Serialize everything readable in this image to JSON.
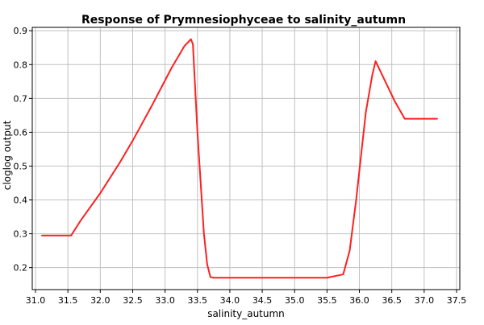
{
  "chart_data": {
    "type": "line",
    "title": "Response of Prymnesiophyceae to salinity_autumn",
    "xlabel": "salinity_autumn",
    "ylabel": "cloglog output",
    "xlim": [
      30.95,
      37.55
    ],
    "ylim": [
      0.135,
      0.91
    ],
    "x_ticks": [
      31.0,
      31.5,
      32.0,
      32.5,
      33.0,
      33.5,
      34.0,
      34.5,
      35.0,
      35.5,
      36.0,
      36.5,
      37.0,
      37.5
    ],
    "x_tick_labels": [
      "31.0",
      "31.5",
      "32.0",
      "32.5",
      "33.0",
      "33.5",
      "34.0",
      "34.5",
      "35.0",
      "35.5",
      "36.0",
      "36.5",
      "37.0",
      "37.5"
    ],
    "y_ticks": [
      0.2,
      0.3,
      0.4,
      0.5,
      0.6,
      0.7,
      0.8,
      0.9
    ],
    "y_tick_labels": [
      "0.2",
      "0.3",
      "0.4",
      "0.5",
      "0.6",
      "0.7",
      "0.8",
      "0.9"
    ],
    "grid": true,
    "line_color": "#ff2020",
    "series": [
      {
        "x": [
          31.1,
          31.55,
          31.7,
          32.0,
          32.3,
          32.5,
          32.8,
          33.1,
          33.3,
          33.4,
          33.43,
          33.5,
          33.6,
          33.65,
          33.7,
          33.75,
          34.0,
          35.0,
          35.5,
          35.75,
          35.85,
          35.95,
          36.1,
          36.2,
          36.25,
          36.4,
          36.55,
          36.7,
          37.0,
          37.2
        ],
        "y": [
          0.295,
          0.295,
          0.34,
          0.42,
          0.51,
          0.575,
          0.68,
          0.79,
          0.855,
          0.875,
          0.86,
          0.6,
          0.3,
          0.21,
          0.172,
          0.17,
          0.17,
          0.17,
          0.17,
          0.18,
          0.25,
          0.4,
          0.66,
          0.77,
          0.81,
          0.75,
          0.69,
          0.64,
          0.64,
          0.64
        ]
      }
    ]
  }
}
